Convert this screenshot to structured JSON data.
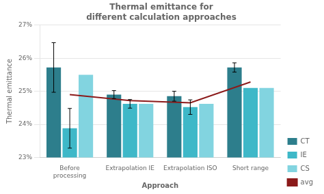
{
  "chart_data": {
    "type": "bar",
    "title": "Thermal emittance for\ndifferent calculation approaches",
    "xlabel": "Approach",
    "ylabel": "Thermal emittance",
    "categories": [
      "Before\nprocessing",
      "Extrapolation IE",
      "Extrapolation ISO",
      "Short range"
    ],
    "series": [
      {
        "name": "CT",
        "color": "#2d7e8c",
        "values": [
          25.72,
          24.9,
          24.85,
          25.72
        ],
        "errors": [
          0.75,
          0.12,
          0.15,
          0.14
        ]
      },
      {
        "name": "IE",
        "color": "#3eb8c8",
        "values": [
          23.88,
          24.62,
          24.52,
          25.1
        ],
        "errors": [
          0.6,
          0.13,
          0.22,
          0.0
        ]
      },
      {
        "name": "CS",
        "color": "#82d4e0",
        "values": [
          25.5,
          24.62,
          24.62,
          25.1
        ]
      },
      {
        "name": "avg",
        "color": "#8b1a1a",
        "values": [
          24.9,
          24.72,
          24.65,
          25.28
        ],
        "type": "line"
      }
    ],
    "ylim": [
      23,
      27
    ],
    "yticks": [
      {
        "value": 23,
        "label": "23%"
      },
      {
        "value": 24,
        "label": "24%"
      },
      {
        "value": 25,
        "label": "25%"
      },
      {
        "value": 26,
        "label": "26%"
      },
      {
        "value": 27,
        "label": "27%"
      }
    ],
    "grid": true,
    "legend": "lower right"
  }
}
